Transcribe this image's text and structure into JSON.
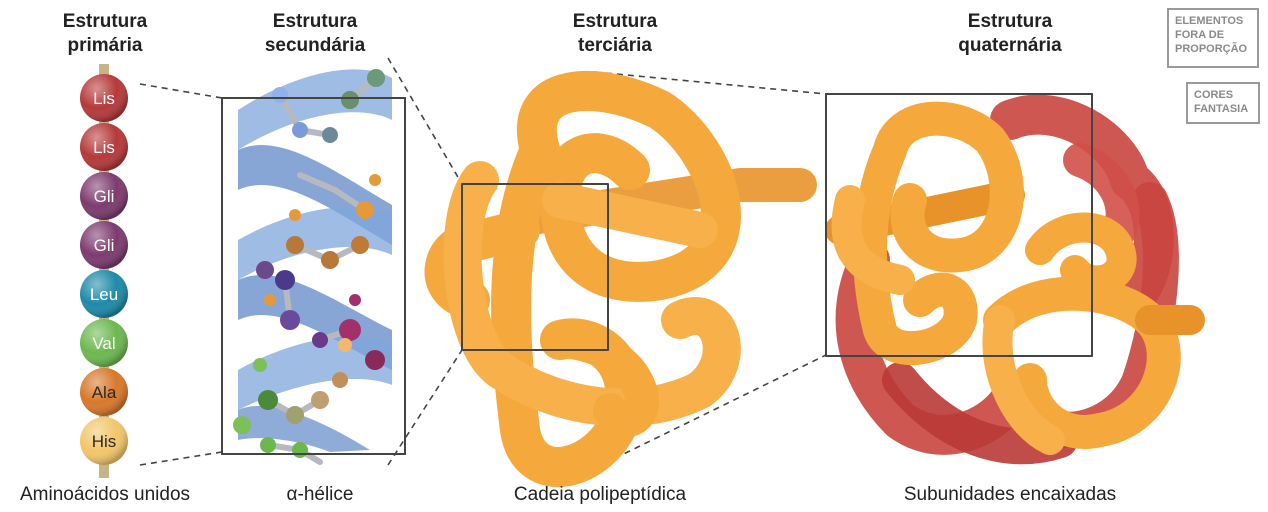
{
  "headings": {
    "primary": [
      "Estrutura",
      "primária"
    ],
    "secondary": [
      "Estrutura",
      "secundária"
    ],
    "tertiary": [
      "Estrutura",
      "terciária"
    ],
    "quaternary": [
      "Estrutura",
      "quaternária"
    ]
  },
  "captions": {
    "primary": "Aminoácidos unidos",
    "secondary": "α-hélice",
    "tertiary": "Cadeia polipeptídica",
    "quaternary": "Subunidades encaixadas"
  },
  "badges": {
    "scale": [
      "ELEMENTOS",
      "FORA DE",
      "PROPORÇÃO"
    ],
    "colors": [
      "CORES",
      "FANTASIA"
    ]
  },
  "amino_acids": [
    {
      "label": "Lis",
      "color": "#b5393a"
    },
    {
      "label": "Lis",
      "color": "#b5393a"
    },
    {
      "label": "Gli",
      "color": "#7d3a6e"
    },
    {
      "label": "Gli",
      "color": "#7d3a6e"
    },
    {
      "label": "Leu",
      "color": "#1e8aa8"
    },
    {
      "label": "Val",
      "color": "#6cb84f"
    },
    {
      "label": "Ala",
      "color": "#d8782a"
    },
    {
      "label": "His",
      "color": "#f2c66a"
    }
  ],
  "colors": {
    "helix": "#7fa6dc",
    "chain": "#f5a83c",
    "subunit": "#c9463e",
    "frame": "#444444"
  }
}
